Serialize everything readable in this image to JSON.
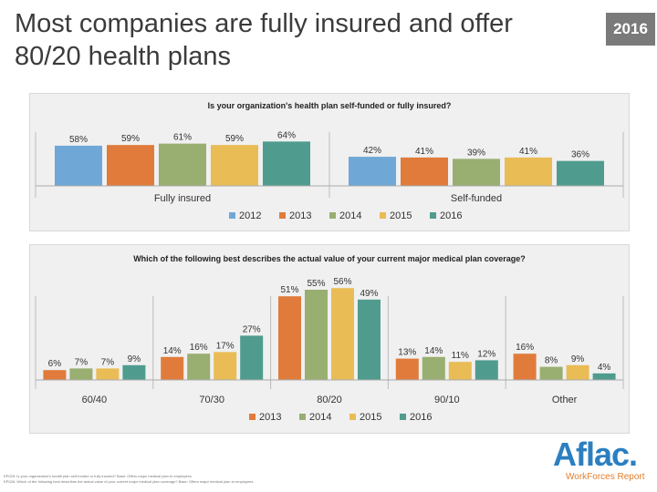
{
  "slide": {
    "title": "Most companies are fully insured and offer 80/20 health plans",
    "year_badge": "2016"
  },
  "colors": {
    "2012": "#6fa8d6",
    "2013": "#e07b3c",
    "2014": "#99ae71",
    "2015": "#e9bc55",
    "2016": "#4f9c8f",
    "panel_bg": "#f0f0f0",
    "logo_blue": "#2b7fc1",
    "logo_orange": "#e27f2b"
  },
  "chart_data": [
    {
      "type": "bar",
      "title": "Is your organization's health plan self-funded or fully insured?",
      "categories": [
        "Fully insured",
        "Self-funded"
      ],
      "series": [
        {
          "name": "2012",
          "values": [
            58,
            42
          ]
        },
        {
          "name": "2013",
          "values": [
            59,
            41
          ]
        },
        {
          "name": "2014",
          "values": [
            61,
            39
          ]
        },
        {
          "name": "2015",
          "values": [
            59,
            41
          ]
        },
        {
          "name": "2016",
          "values": [
            64,
            36
          ]
        }
      ],
      "ylim": [
        0,
        100
      ],
      "value_suffix": "%",
      "legend_position": "bottom",
      "grid": false
    },
    {
      "type": "bar",
      "title": "Which of the following best describes the actual value of your current major medical plan coverage?",
      "categories": [
        "60/40",
        "70/30",
        "80/20",
        "90/10",
        "Other"
      ],
      "series": [
        {
          "name": "2013",
          "values": [
            6,
            14,
            51,
            13,
            16
          ]
        },
        {
          "name": "2014",
          "values": [
            7,
            16,
            55,
            14,
            8
          ]
        },
        {
          "name": "2015",
          "values": [
            7,
            17,
            56,
            11,
            9
          ]
        },
        {
          "name": "2016",
          "values": [
            9,
            27,
            49,
            12,
            4
          ]
        }
      ],
      "ylim": [
        0,
        60
      ],
      "value_suffix": "%",
      "legend_position": "bottom",
      "grid": false
    }
  ],
  "footnotes": [
    "EP025: Is your organization's health plan self-funded or fully insured? Base: Offers major medical plan to employees.",
    "EP026: Which of the following best describes the actual value of your current major medical plan coverage? Base: Offers major medical plan to employees."
  ],
  "logo": {
    "wordmark": "Aflac.",
    "subtitle": "WorkForces Report"
  }
}
